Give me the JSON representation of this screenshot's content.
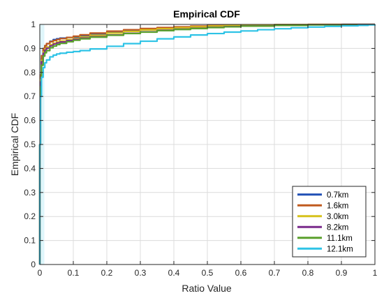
{
  "chart_data": {
    "type": "line",
    "title": "Empirical CDF",
    "xlabel": "Ratio Value",
    "ylabel": "Empirical CDF",
    "xlim": [
      0,
      1
    ],
    "ylim": [
      0,
      1
    ],
    "xticks": [
      0,
      0.1,
      0.2,
      0.3,
      0.4,
      0.5,
      0.6,
      0.7,
      0.8,
      0.9,
      1
    ],
    "xtick_labels": [
      "0",
      "0.1",
      "0.2",
      "0.3",
      "0.4",
      "0.5",
      "0.6",
      "0.7",
      "0.8",
      "0.9",
      "1"
    ],
    "yticks": [
      0,
      0.1,
      0.2,
      0.3,
      0.4,
      0.5,
      0.6,
      0.7,
      0.8,
      0.9,
      1
    ],
    "ytick_labels": [
      "0",
      "0.1",
      "0.2",
      "0.3",
      "0.4",
      "0.5",
      "0.6",
      "0.7",
      "0.8",
      "0.9",
      "1"
    ],
    "grid": true,
    "legend_position": "bottom-right",
    "series": [
      {
        "name": "0.7km",
        "color": "#1f4fb5",
        "x": [
          0,
          0,
          0.002,
          0.005,
          0.01,
          0.015,
          0.02,
          0.03,
          0.04,
          0.05,
          0.06,
          0.08,
          0.1,
          0.12,
          0.15,
          0.2,
          0.25,
          0.3,
          0.35,
          0.4,
          0.45,
          0.5,
          0.55,
          0.6,
          0.65,
          0.7,
          0.8,
          0.9,
          0.905,
          1
        ],
        "y": [
          0,
          0.5,
          0.78,
          0.86,
          0.895,
          0.91,
          0.92,
          0.93,
          0.937,
          0.94,
          0.943,
          0.946,
          0.948,
          0.952,
          0.958,
          0.966,
          0.972,
          0.977,
          0.982,
          0.986,
          0.989,
          0.992,
          0.994,
          0.996,
          0.997,
          0.998,
          0.999,
          0.999,
          1,
          1
        ]
      },
      {
        "name": "1.6km",
        "color": "#c05a1f",
        "x": [
          0,
          0,
          0.002,
          0.005,
          0.01,
          0.015,
          0.02,
          0.03,
          0.04,
          0.05,
          0.06,
          0.08,
          0.1,
          0.12,
          0.15,
          0.2,
          0.25,
          0.3,
          0.35,
          0.4,
          0.45,
          0.5,
          0.55,
          0.6,
          0.7,
          0.8,
          1
        ],
        "y": [
          0,
          0.5,
          0.79,
          0.87,
          0.9,
          0.912,
          0.92,
          0.928,
          0.933,
          0.937,
          0.941,
          0.946,
          0.951,
          0.957,
          0.964,
          0.972,
          0.978,
          0.983,
          0.987,
          0.99,
          0.993,
          0.995,
          0.997,
          0.998,
          0.999,
          1,
          1
        ]
      },
      {
        "name": "3.0km",
        "color": "#d6c21c",
        "x": [
          0,
          0,
          0.002,
          0.005,
          0.01,
          0.015,
          0.02,
          0.03,
          0.04,
          0.05,
          0.06,
          0.08,
          0.1,
          0.12,
          0.15,
          0.2,
          0.25,
          0.3,
          0.35,
          0.4,
          0.45,
          0.5,
          0.55,
          0.6,
          0.7,
          0.8,
          1
        ],
        "y": [
          0,
          0.5,
          0.77,
          0.85,
          0.885,
          0.898,
          0.906,
          0.916,
          0.922,
          0.927,
          0.931,
          0.937,
          0.942,
          0.948,
          0.955,
          0.964,
          0.971,
          0.977,
          0.982,
          0.986,
          0.99,
          0.993,
          0.995,
          0.997,
          0.999,
          1,
          1
        ]
      },
      {
        "name": "8.2km",
        "color": "#7a2a8c",
        "x": [
          0,
          0,
          0.002,
          0.005,
          0.01,
          0.015,
          0.02,
          0.03,
          0.04,
          0.05,
          0.06,
          0.08,
          0.1,
          0.12,
          0.15,
          0.2,
          0.25,
          0.3,
          0.35,
          0.4,
          0.45,
          0.5,
          0.55,
          0.6,
          0.7,
          0.8,
          0.9,
          1
        ],
        "y": [
          0,
          0.5,
          0.76,
          0.845,
          0.88,
          0.893,
          0.901,
          0.911,
          0.918,
          0.923,
          0.927,
          0.933,
          0.938,
          0.943,
          0.949,
          0.956,
          0.963,
          0.969,
          0.975,
          0.98,
          0.984,
          0.988,
          0.991,
          0.994,
          0.997,
          0.999,
          1,
          1
        ]
      },
      {
        "name": "11.1km",
        "color": "#5aa02c",
        "x": [
          0,
          0,
          0.002,
          0.005,
          0.01,
          0.015,
          0.02,
          0.03,
          0.04,
          0.05,
          0.06,
          0.08,
          0.1,
          0.12,
          0.15,
          0.2,
          0.25,
          0.3,
          0.35,
          0.4,
          0.45,
          0.5,
          0.55,
          0.6,
          0.7,
          0.8,
          0.9,
          1
        ],
        "y": [
          0,
          0.5,
          0.74,
          0.83,
          0.868,
          0.882,
          0.891,
          0.903,
          0.91,
          0.916,
          0.921,
          0.928,
          0.934,
          0.94,
          0.947,
          0.955,
          0.962,
          0.968,
          0.974,
          0.979,
          0.983,
          0.987,
          0.99,
          0.993,
          0.996,
          0.998,
          0.999,
          1
        ]
      },
      {
        "name": "12.1km",
        "color": "#2ec3e6",
        "x": [
          0,
          0,
          0.002,
          0.005,
          0.01,
          0.015,
          0.02,
          0.03,
          0.04,
          0.05,
          0.06,
          0.08,
          0.1,
          0.12,
          0.15,
          0.2,
          0.25,
          0.3,
          0.35,
          0.4,
          0.45,
          0.5,
          0.55,
          0.6,
          0.65,
          0.7,
          0.75,
          0.8,
          0.85,
          0.9,
          0.95,
          0.98,
          1
        ],
        "y": [
          0,
          0.5,
          0.7,
          0.78,
          0.82,
          0.84,
          0.852,
          0.865,
          0.872,
          0.877,
          0.88,
          0.884,
          0.887,
          0.891,
          0.898,
          0.909,
          0.92,
          0.93,
          0.94,
          0.948,
          0.956,
          0.962,
          0.968,
          0.973,
          0.978,
          0.982,
          0.986,
          0.989,
          0.992,
          0.994,
          0.996,
          0.998,
          1
        ]
      }
    ]
  }
}
